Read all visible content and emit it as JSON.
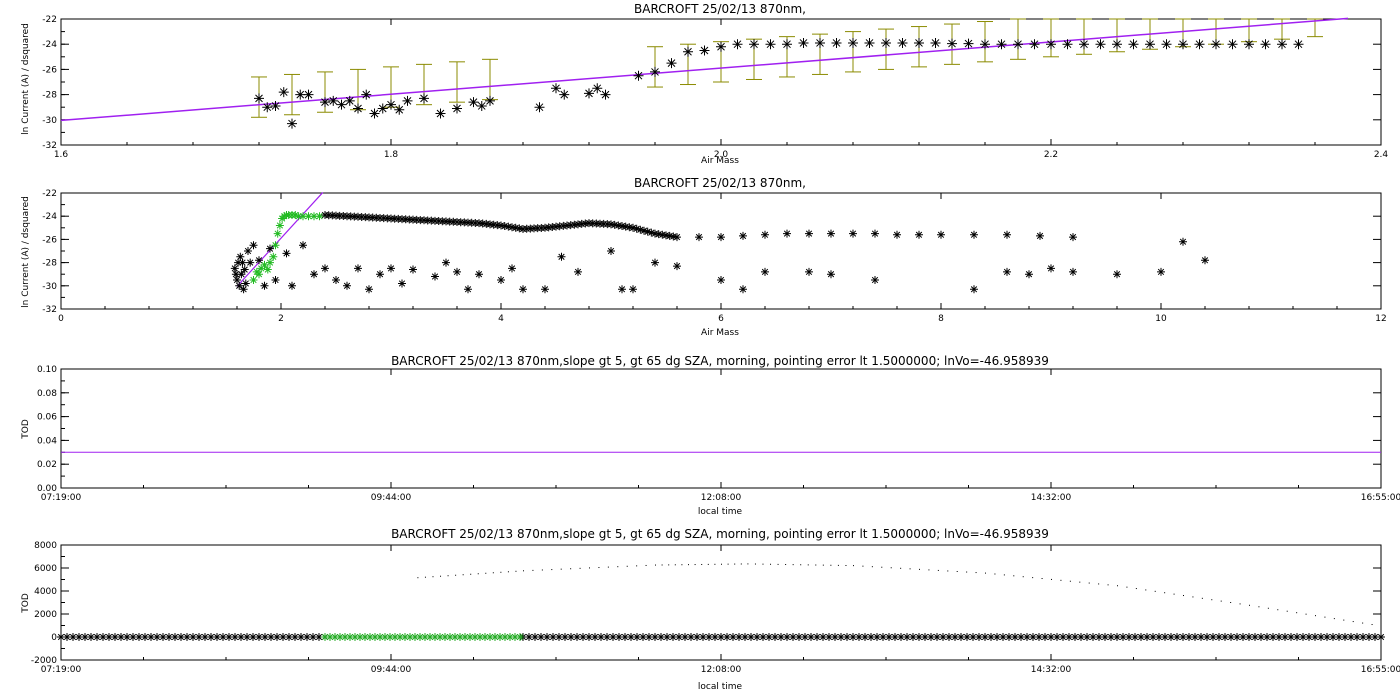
{
  "chart_data": [
    {
      "type": "scatter",
      "title": "BARCROFT 25/02/13 870nm,",
      "xlabel": "Air Mass",
      "ylabel": "ln Current (A) / dsquared",
      "xlim": [
        1.6,
        2.4
      ],
      "ylim": [
        -32,
        -22
      ],
      "xticks": [
        "1.6",
        "1.8",
        "2.0",
        "2.2",
        "2.4"
      ],
      "yticks": [
        "-32",
        "-30",
        "-28",
        "-26",
        "-24",
        "-22"
      ],
      "fit_line": {
        "x": [
          1.6,
          2.38
        ],
        "y": [
          -30.05,
          -21.95
        ],
        "color": "#a020f0"
      },
      "error_bars": {
        "color": "#8b8b00",
        "x": [
          1.72,
          1.74,
          1.76,
          1.78,
          1.8,
          1.82,
          1.84,
          1.86,
          1.96,
          1.98,
          2.0,
          2.02,
          2.04,
          2.06,
          2.08,
          2.1,
          2.12,
          2.14,
          2.16,
          2.18,
          2.2,
          2.22,
          2.24,
          2.26,
          2.28,
          2.3,
          2.32,
          2.34,
          2.36
        ],
        "center": [
          -28.2,
          -28.0,
          -27.8,
          -27.6,
          -27.4,
          -27.2,
          -27.0,
          -26.8,
          -25.8,
          -25.6,
          -25.4,
          -25.2,
          -25.0,
          -24.8,
          -24.6,
          -24.4,
          -24.2,
          -24.0,
          -23.8,
          -23.6,
          -23.4,
          -23.2,
          -23.0,
          -22.8,
          -22.6,
          -22.4,
          -22.2,
          -22.0,
          -21.8
        ],
        "half_width": 1.6
      },
      "points": [
        [
          1.72,
          -28.3
        ],
        [
          1.725,
          -29.0
        ],
        [
          1.73,
          -28.9
        ],
        [
          1.735,
          -27.8
        ],
        [
          1.74,
          -30.3
        ],
        [
          1.745,
          -28.0
        ],
        [
          1.75,
          -28.0
        ],
        [
          1.76,
          -28.6
        ],
        [
          1.765,
          -28.5
        ],
        [
          1.77,
          -28.8
        ],
        [
          1.775,
          -28.5
        ],
        [
          1.78,
          -29.1
        ],
        [
          1.785,
          -28.0
        ],
        [
          1.79,
          -29.5
        ],
        [
          1.795,
          -29.1
        ],
        [
          1.8,
          -28.8
        ],
        [
          1.805,
          -29.2
        ],
        [
          1.81,
          -28.5
        ],
        [
          1.82,
          -28.3
        ],
        [
          1.83,
          -29.5
        ],
        [
          1.84,
          -29.1
        ],
        [
          1.85,
          -28.6
        ],
        [
          1.855,
          -28.9
        ],
        [
          1.86,
          -28.5
        ],
        [
          1.89,
          -29.0
        ],
        [
          1.9,
          -27.5
        ],
        [
          1.905,
          -28.0
        ],
        [
          1.92,
          -27.9
        ],
        [
          1.925,
          -27.5
        ],
        [
          1.93,
          -28.0
        ],
        [
          1.95,
          -26.5
        ],
        [
          1.96,
          -26.2
        ],
        [
          1.97,
          -25.5
        ],
        [
          1.98,
          -24.6
        ],
        [
          1.99,
          -24.5
        ],
        [
          2.0,
          -24.2
        ],
        [
          2.01,
          -24.0
        ],
        [
          2.02,
          -24.0
        ],
        [
          2.03,
          -24.0
        ],
        [
          2.04,
          -24.0
        ],
        [
          2.05,
          -23.9
        ],
        [
          2.06,
          -23.9
        ],
        [
          2.07,
          -23.9
        ],
        [
          2.08,
          -23.9
        ],
        [
          2.09,
          -23.9
        ],
        [
          2.1,
          -23.9
        ],
        [
          2.11,
          -23.9
        ],
        [
          2.12,
          -23.9
        ],
        [
          2.13,
          -23.9
        ],
        [
          2.14,
          -23.95
        ],
        [
          2.15,
          -23.95
        ],
        [
          2.16,
          -24.0
        ],
        [
          2.17,
          -24.0
        ],
        [
          2.18,
          -24.0
        ],
        [
          2.19,
          -24.0
        ],
        [
          2.2,
          -24.0
        ],
        [
          2.21,
          -24.0
        ],
        [
          2.22,
          -24.0
        ],
        [
          2.23,
          -24.0
        ],
        [
          2.24,
          -24.0
        ],
        [
          2.25,
          -24.0
        ],
        [
          2.26,
          -24.0
        ],
        [
          2.27,
          -24.0
        ],
        [
          2.28,
          -24.0
        ],
        [
          2.29,
          -24.0
        ],
        [
          2.3,
          -24.0
        ],
        [
          2.31,
          -24.0
        ],
        [
          2.32,
          -24.0
        ],
        [
          2.33,
          -24.0
        ],
        [
          2.34,
          -24.0
        ],
        [
          2.35,
          -24.0
        ]
      ]
    },
    {
      "type": "scatter",
      "title": "BARCROFT 25/02/13 870nm,",
      "xlabel": "Air Mass",
      "ylabel": "ln Current (A) / dsquared",
      "xlim": [
        0,
        12
      ],
      "ylim": [
        -32,
        -22
      ],
      "xticks": [
        "0",
        "2",
        "4",
        "6",
        "8",
        "10",
        "12"
      ],
      "yticks": [
        "-32",
        "-30",
        "-28",
        "-26",
        "-24",
        "-22"
      ],
      "fit_line": {
        "x": [
          1.6,
          2.38
        ],
        "y": [
          -30.05,
          -21.95
        ],
        "color": "#a020f0"
      },
      "green_points": [
        [
          1.75,
          -29.5
        ],
        [
          1.78,
          -28.8
        ],
        [
          1.8,
          -29.0
        ],
        [
          1.82,
          -28.5
        ],
        [
          1.85,
          -28.2
        ],
        [
          1.88,
          -28.6
        ],
        [
          1.9,
          -28.0
        ],
        [
          1.93,
          -27.5
        ],
        [
          1.95,
          -26.5
        ],
        [
          1.97,
          -25.5
        ],
        [
          1.99,
          -24.8
        ],
        [
          2.01,
          -24.2
        ],
        [
          2.03,
          -24.0
        ],
        [
          2.05,
          -23.9
        ],
        [
          2.07,
          -23.9
        ],
        [
          2.1,
          -23.9
        ],
        [
          2.13,
          -23.9
        ],
        [
          2.16,
          -24.0
        ],
        [
          2.2,
          -24.0
        ],
        [
          2.25,
          -24.0
        ],
        [
          2.3,
          -24.0
        ],
        [
          2.35,
          -24.0
        ]
      ],
      "black_points": [
        [
          1.58,
          -28.5
        ],
        [
          1.59,
          -29.0
        ],
        [
          1.6,
          -29.5
        ],
        [
          1.61,
          -28.0
        ],
        [
          1.62,
          -30.0
        ],
        [
          1.63,
          -27.5
        ],
        [
          1.64,
          -29.0
        ],
        [
          1.65,
          -28.0
        ],
        [
          1.66,
          -30.3
        ],
        [
          1.67,
          -28.6
        ],
        [
          1.68,
          -29.8
        ],
        [
          1.7,
          -27.0
        ],
        [
          1.72,
          -28.0
        ],
        [
          1.75,
          -26.5
        ],
        [
          1.8,
          -27.8
        ],
        [
          1.85,
          -30.0
        ],
        [
          1.9,
          -26.8
        ],
        [
          1.95,
          -29.5
        ],
        [
          2.05,
          -27.2
        ],
        [
          2.1,
          -30.0
        ],
        [
          2.2,
          -26.5
        ],
        [
          2.3,
          -29.0
        ],
        [
          2.4,
          -28.5
        ],
        [
          2.5,
          -29.5
        ],
        [
          2.6,
          -30.0
        ],
        [
          2.7,
          -28.5
        ],
        [
          2.8,
          -30.3
        ],
        [
          2.9,
          -29.0
        ],
        [
          3.0,
          -28.5
        ],
        [
          3.1,
          -29.8
        ],
        [
          3.2,
          -28.6
        ],
        [
          3.4,
          -29.2
        ],
        [
          3.5,
          -28.0
        ],
        [
          3.6,
          -28.8
        ],
        [
          3.7,
          -30.3
        ],
        [
          3.8,
          -29.0
        ],
        [
          4.0,
          -29.5
        ],
        [
          4.1,
          -28.5
        ],
        [
          4.2,
          -30.3
        ],
        [
          4.4,
          -30.3
        ],
        [
          4.55,
          -27.5
        ],
        [
          4.7,
          -28.8
        ],
        [
          5.0,
          -27.0
        ],
        [
          5.1,
          -30.3
        ],
        [
          5.2,
          -30.3
        ],
        [
          5.4,
          -28.0
        ],
        [
          5.6,
          -28.3
        ],
        [
          6.0,
          -29.5
        ],
        [
          6.2,
          -30.3
        ],
        [
          6.4,
          -28.8
        ],
        [
          6.8,
          -28.8
        ],
        [
          7.0,
          -29.0
        ],
        [
          7.4,
          -29.5
        ],
        [
          9.0,
          -28.5
        ],
        [
          9.2,
          -28.8
        ],
        [
          9.6,
          -29.0
        ],
        [
          10.0,
          -28.8
        ],
        [
          10.2,
          -26.2
        ],
        [
          10.4,
          -27.8
        ],
        [
          8.3,
          -30.3
        ],
        [
          8.6,
          -28.8
        ],
        [
          8.8,
          -29.0
        ]
      ],
      "upper_curve": [
        [
          2.4,
          -23.9
        ],
        [
          2.6,
          -24.0
        ],
        [
          2.8,
          -24.1
        ],
        [
          3.0,
          -24.2
        ],
        [
          3.2,
          -24.3
        ],
        [
          3.4,
          -24.4
        ],
        [
          3.6,
          -24.5
        ],
        [
          3.8,
          -24.6
        ],
        [
          4.0,
          -24.8
        ],
        [
          4.2,
          -25.1
        ],
        [
          4.4,
          -25.0
        ],
        [
          4.6,
          -24.8
        ],
        [
          4.8,
          -24.6
        ],
        [
          5.0,
          -24.7
        ],
        [
          5.2,
          -25.0
        ],
        [
          5.4,
          -25.5
        ],
        [
          5.6,
          -25.8
        ],
        [
          5.8,
          -25.8
        ],
        [
          6.0,
          -25.8
        ],
        [
          6.2,
          -25.7
        ],
        [
          6.4,
          -25.6
        ],
        [
          6.6,
          -25.5
        ],
        [
          6.8,
          -25.5
        ],
        [
          7.0,
          -25.5
        ],
        [
          7.2,
          -25.5
        ],
        [
          7.4,
          -25.5
        ],
        [
          7.6,
          -25.6
        ],
        [
          7.8,
          -25.6
        ],
        [
          8.0,
          -25.6
        ],
        [
          8.3,
          -25.6
        ],
        [
          8.6,
          -25.6
        ],
        [
          8.9,
          -25.7
        ],
        [
          9.2,
          -25.8
        ],
        [
          9.5,
          -25.9
        ]
      ]
    },
    {
      "type": "line",
      "title": "BARCROFT 25/02/13 870nm,slope gt 5, gt 65 dg SZA, morning, pointing error lt 1.5000000; lnVo=-46.958939",
      "xlabel": "local time",
      "ylabel": "TOD",
      "ylim": [
        0,
        0.1
      ],
      "xticks": [
        "07:19:00",
        "09:44:00",
        "12:08:00",
        "14:32:00",
        "16:55:00"
      ],
      "yticks": [
        "0.00",
        "0.02",
        "0.04",
        "0.06",
        "0.08",
        "0.10"
      ],
      "line": {
        "value": 0.03,
        "color": "#a020f0"
      }
    },
    {
      "type": "scatter",
      "title": "BARCROFT 25/02/13 870nm,slope gt 5, gt 65 dg SZA, morning, pointing error lt 1.5000000; lnVo=-46.958939",
      "xlabel": "local time",
      "ylabel": "TOD",
      "ylim": [
        -2000,
        8000
      ],
      "xticks": [
        "07:19:00",
        "09:44:00",
        "12:08:00",
        "14:32:00",
        "16:55:00"
      ],
      "yticks": [
        "-2000",
        "0",
        "2000",
        "4000",
        "6000",
        "8000"
      ],
      "arc": {
        "x_frac": [
          0.27,
          0.35,
          0.45,
          0.52,
          0.6,
          0.7,
          0.8,
          0.9,
          1.0
        ],
        "y": [
          5200,
          5800,
          6300,
          6400,
          6250,
          5600,
          4500,
          2800,
          1000
        ]
      },
      "baseline": {
        "y": 0,
        "green_range_frac": [
          0.2,
          0.35
        ],
        "black_range_frac": [
          [
            0.0,
            0.2
          ],
          [
            0.35,
            1.0
          ]
        ]
      }
    }
  ]
}
